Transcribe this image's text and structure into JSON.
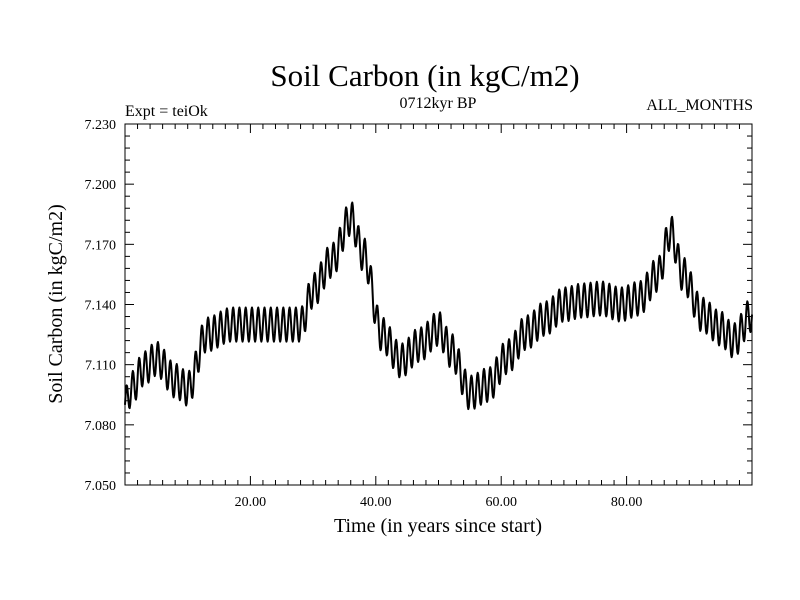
{
  "chart_data": {
    "type": "line",
    "title": "Soil Carbon (in kgC/m2)",
    "subtitle": "0712kyr BP",
    "left_annotation": "Expt = teiOk",
    "right_annotation": "ALL_MONTHS",
    "xlabel": "Time (in years since start)",
    "ylabel": "Soil Carbon (in kgC/m2)",
    "xlim": [
      0,
      100
    ],
    "ylim": [
      7.05,
      7.23
    ],
    "x_ticks": [
      20,
      40,
      60,
      80
    ],
    "x_tick_labels": [
      "20.00",
      "40.00",
      "60.00",
      "80.00"
    ],
    "y_ticks": [
      7.05,
      7.08,
      7.11,
      7.14,
      7.17,
      7.2,
      7.23
    ],
    "y_tick_labels": [
      "7.050",
      "7.080",
      "7.110",
      "7.140",
      "7.170",
      "7.200",
      "7.230"
    ],
    "seasonal_cycle": {
      "samples_per_year": 12,
      "half_amplitude": 0.0085,
      "period_years": 1
    },
    "series": [
      {
        "name": "Soil Carbon",
        "color": "#000000",
        "trend_years": [
          0,
          1,
          3,
          5,
          8,
          10,
          13,
          17,
          22,
          25,
          28,
          30,
          33,
          36,
          38,
          41,
          44,
          47,
          50,
          52,
          55,
          58,
          61,
          64,
          67,
          70,
          73,
          76,
          79,
          82,
          85,
          87,
          89,
          92,
          95,
          97,
          100
        ],
        "trend_values": [
          7.09,
          7.098,
          7.108,
          7.113,
          7.102,
          7.098,
          7.125,
          7.13,
          7.13,
          7.13,
          7.13,
          7.147,
          7.162,
          7.183,
          7.165,
          7.125,
          7.112,
          7.12,
          7.128,
          7.117,
          7.096,
          7.1,
          7.114,
          7.126,
          7.133,
          7.14,
          7.142,
          7.143,
          7.14,
          7.143,
          7.155,
          7.176,
          7.155,
          7.135,
          7.128,
          7.122,
          7.135
        ]
      }
    ]
  }
}
